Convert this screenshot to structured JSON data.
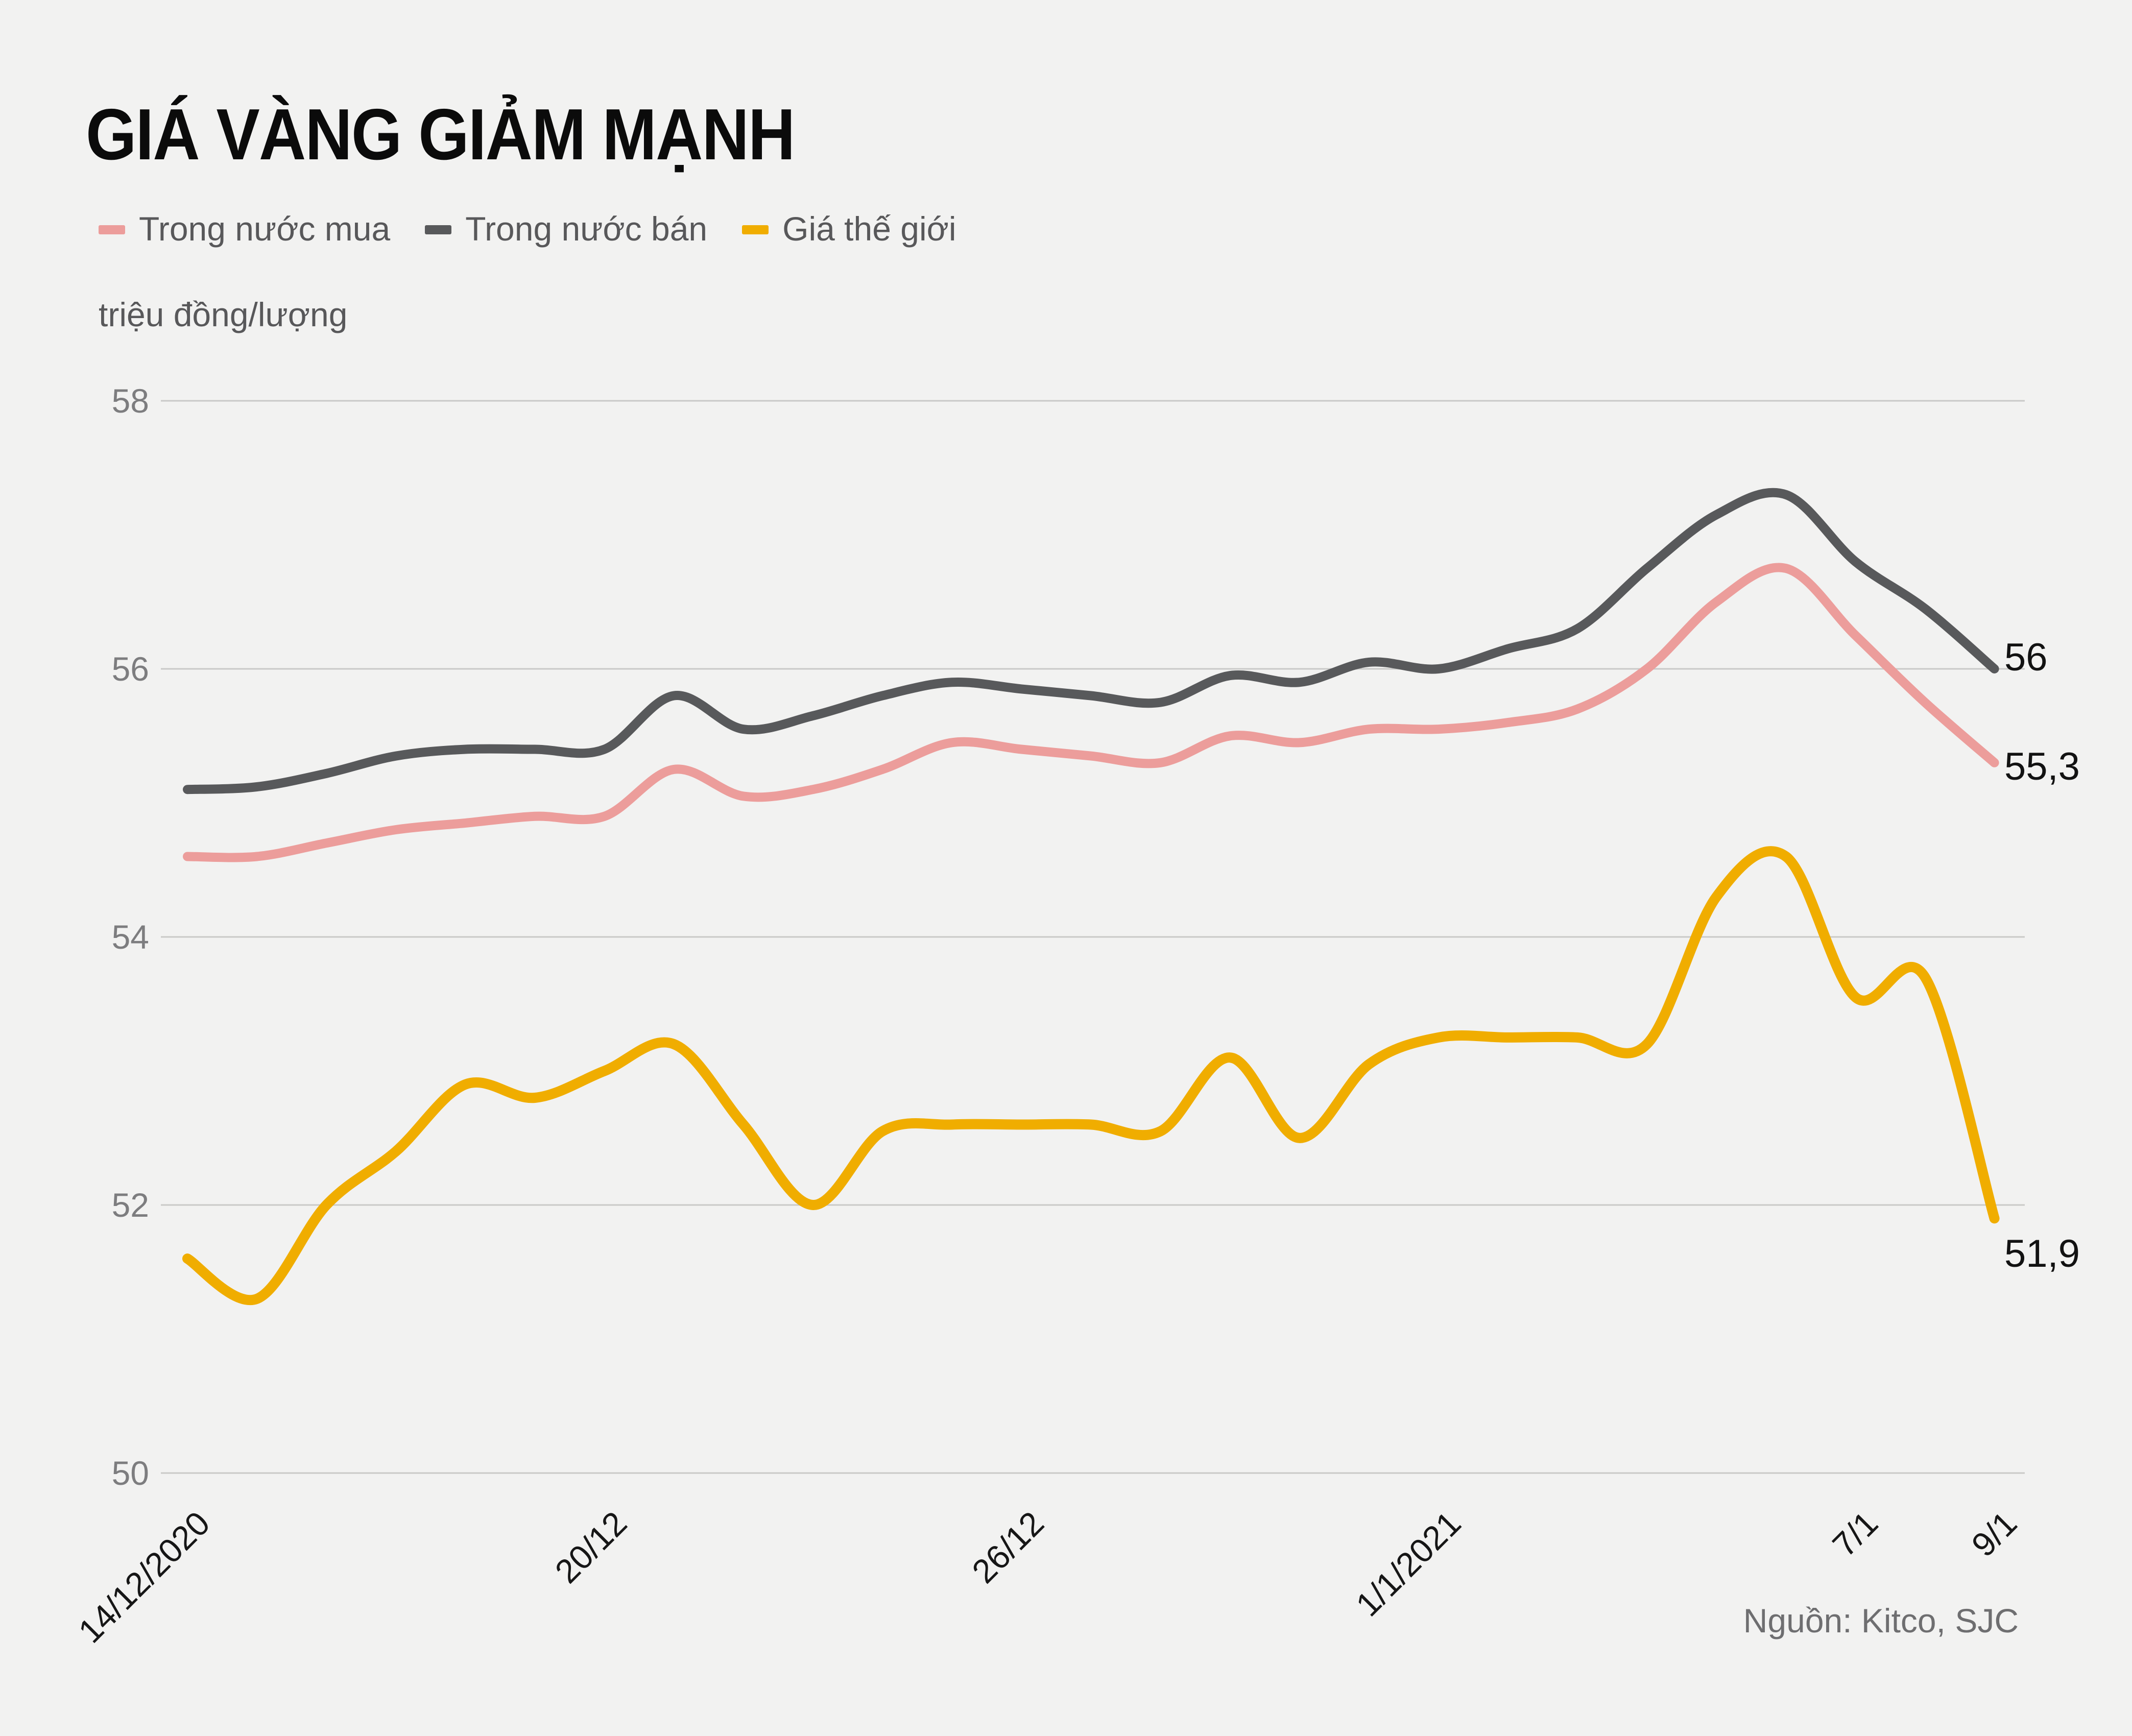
{
  "source": "Nguồn: Kitco, SJC",
  "chart_data": {
    "type": "line",
    "title": "GIÁ VÀNG GIẢM MẠNH",
    "unit_label": "triệu đồng/lượng",
    "grid": "horizontal",
    "legend_position": "top-left",
    "ylim": [
      49.6,
      58
    ],
    "y_ticks": [
      58,
      56,
      54,
      52,
      50
    ],
    "x_ticks": [
      {
        "day": 0,
        "label": "14/12/2020"
      },
      {
        "day": 6,
        "label": "20/12"
      },
      {
        "day": 12,
        "label": "26/12"
      },
      {
        "day": 18,
        "label": "1/1/2021"
      },
      {
        "day": 24,
        "label": "7/1"
      },
      {
        "day": 26,
        "label": "9/1"
      }
    ],
    "x_range_days": 26,
    "series": [
      {
        "name": "Trong nước mua",
        "color": "#EC9D9B",
        "end_label": "55,3",
        "values": [
          54.6,
          54.6,
          54.7,
          54.8,
          54.85,
          54.9,
          54.9,
          55.25,
          55.05,
          55.1,
          55.25,
          55.45,
          55.4,
          55.35,
          55.3,
          55.5,
          55.45,
          55.55,
          55.55,
          55.6,
          55.7,
          56.0,
          56.5,
          56.75,
          56.25,
          55.75,
          55.3
        ]
      },
      {
        "name": "Trong nước bán",
        "color": "#58595B",
        "end_label": "56",
        "values": [
          55.1,
          55.12,
          55.22,
          55.35,
          55.4,
          55.4,
          55.4,
          55.8,
          55.55,
          55.65,
          55.8,
          55.9,
          55.85,
          55.8,
          55.75,
          55.95,
          55.9,
          56.05,
          56.0,
          56.15,
          56.3,
          56.75,
          57.15,
          57.3,
          56.8,
          56.45,
          56.0
        ]
      },
      {
        "name": "Giá thế giới",
        "color": "#F0AD00",
        "end_label": "51,9",
        "values": [
          51.6,
          51.3,
          52.0,
          52.4,
          52.9,
          52.8,
          53.0,
          53.2,
          52.6,
          52.0,
          52.55,
          52.6,
          52.6,
          52.6,
          52.55,
          53.1,
          52.5,
          53.05,
          53.25,
          53.25,
          53.25,
          53.2,
          54.3,
          54.6,
          53.55,
          53.7,
          51.9
        ]
      }
    ]
  }
}
